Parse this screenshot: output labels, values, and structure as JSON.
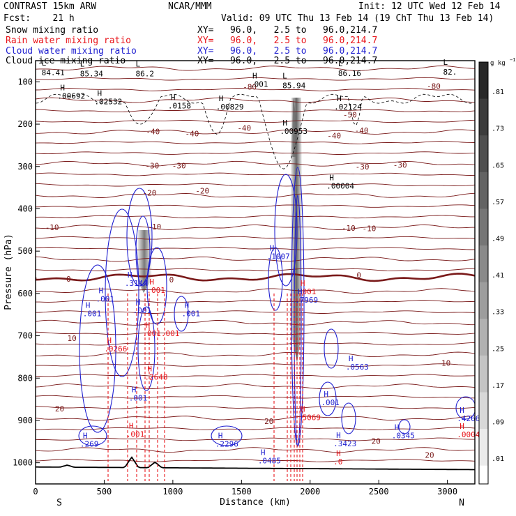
{
  "header": {
    "model": "CONTRAST 15km ARW",
    "center": "NCAR/MMM",
    "init": "Init: 12 UTC Wed 12 Feb 14",
    "fcst": "Fcst:    21 h",
    "valid": "Valid: 09 UTC Thu 13 Feb 14 (19 ChT Thu 13 Feb 14)",
    "fields": [
      {
        "name": "Snow mixing ratio",
        "xy": "XY=   96.0,   2.5 to   96.0,214.7",
        "color": "#000000"
      },
      {
        "name": "Rain water mixing ratio",
        "xy": "XY=   96.0,   2.5 to   96.0,214.7",
        "color": "#e8141a"
      },
      {
        "name": "Cloud water mixing ratio",
        "xy": "XY=   96.0,   2.5 to   96.0,214.7",
        "color": "#1f1fd0"
      },
      {
        "name": "Cloud ice mixing ratio",
        "xy": "XY=   96.0,   2.5 to   96.0,214.7",
        "color": "#000000"
      }
    ]
  },
  "chart_data": {
    "type": "contour",
    "xlabel": "Distance (km)",
    "ylabel": "Pressure (hPa)",
    "xlim": [
      0,
      3200
    ],
    "ylim": [
      1050,
      50
    ],
    "xticks": [
      0,
      500,
      1000,
      1500,
      2000,
      2500,
      3000
    ],
    "yticks": [
      100,
      200,
      300,
      400,
      500,
      600,
      700,
      800,
      900,
      1000
    ],
    "x_end_labels": {
      "left": "S",
      "right": "N"
    },
    "colorbar": {
      "unit": "g kg",
      "unit_exp": "−1",
      "labels": [
        ".01",
        ".09",
        ".17",
        ".25",
        ".33",
        ".41",
        ".49",
        ".57",
        ".65",
        ".73",
        ".81"
      ]
    },
    "temperature_levels": [
      -80,
      -50,
      -40,
      -30,
      -20,
      -10,
      0,
      10,
      20
    ],
    "temperature_labels": [
      {
        "t": "-80",
        "x": 1560,
        "p": 112
      },
      {
        "t": "-80",
        "x": 2900,
        "p": 110
      },
      {
        "t": "-50",
        "x": 2290,
        "p": 178
      },
      {
        "t": "-40",
        "x": 855,
        "p": 217
      },
      {
        "t": "-40",
        "x": 1140,
        "p": 222
      },
      {
        "t": "-40",
        "x": 1520,
        "p": 209
      },
      {
        "t": "-40",
        "x": 2175,
        "p": 227
      },
      {
        "t": "-40",
        "x": 2375,
        "p": 215
      },
      {
        "t": "-30",
        "x": 850,
        "p": 298
      },
      {
        "t": "-30",
        "x": 1045,
        "p": 298
      },
      {
        "t": "-30",
        "x": 2380,
        "p": 300
      },
      {
        "t": "-30",
        "x": 2655,
        "p": 296
      },
      {
        "t": "-20",
        "x": 830,
        "p": 362
      },
      {
        "t": "-20",
        "x": 1215,
        "p": 357
      },
      {
        "t": "-10",
        "x": 120,
        "p": 444
      },
      {
        "t": "-10",
        "x": 865,
        "p": 442
      },
      {
        "t": "-10",
        "x": 2280,
        "p": 445
      },
      {
        "t": "-10",
        "x": 2430,
        "p": 446
      },
      {
        "t": "0",
        "x": 240,
        "p": 566
      },
      {
        "t": "0",
        "x": 990,
        "p": 567
      },
      {
        "t": "0",
        "x": 2355,
        "p": 557
      },
      {
        "t": "10",
        "x": 265,
        "p": 706
      },
      {
        "t": "10",
        "x": 2990,
        "p": 764
      },
      {
        "t": "20",
        "x": 175,
        "p": 872
      },
      {
        "t": "20",
        "x": 1700,
        "p": 902
      },
      {
        "t": "20",
        "x": 2480,
        "p": 949
      },
      {
        "t": "20",
        "x": 2870,
        "p": 982
      }
    ],
    "min_labels": [
      {
        "x": 115,
        "p": 81,
        "v": "84.41",
        "color": "#000000"
      },
      {
        "x": 395,
        "p": 84,
        "v": "85.34",
        "color": "#000000"
      },
      {
        "x": 800,
        "p": 84,
        "v": "86.2",
        "color": "#000000"
      },
      {
        "x": 1870,
        "p": 112,
        "v": "85.94",
        "color": "#000000"
      },
      {
        "x": 2275,
        "p": 83,
        "v": "86.16",
        "color": "#000000"
      },
      {
        "x": 3040,
        "p": 80,
        "v": "82.",
        "color": "#000000"
      }
    ],
    "max_labels": [
      {
        "x": 200,
        "p": 140,
        "v": ".00692",
        "color": "#000000"
      },
      {
        "x": 470,
        "p": 153,
        "v": ".02532",
        "color": "#000000"
      },
      {
        "x": 1005,
        "p": 163,
        "v": ".0158",
        "color": "#000000"
      },
      {
        "x": 1355,
        "p": 165,
        "v": ".00829",
        "color": "#000000"
      },
      {
        "x": 1600,
        "p": 112,
        "v": ".001",
        "color": "#000000"
      },
      {
        "x": 1820,
        "p": 223,
        "v": ".00953",
        "color": "#000000"
      },
      {
        "x": 2215,
        "p": 165,
        "v": ".02124",
        "color": "#000000"
      },
      {
        "x": 2160,
        "p": 352,
        "v": ".00004",
        "color": "#000000"
      },
      {
        "x": 690,
        "p": 582,
        "v": ".3144",
        "color": "#1f1fd0"
      },
      {
        "x": 480,
        "p": 619,
        "v": ".001",
        "color": "#1f1fd0"
      },
      {
        "x": 385,
        "p": 654,
        "v": ".001",
        "color": "#1f1fd0"
      },
      {
        "x": 750,
        "p": 646,
        "v": ".001",
        "color": "#1f1fd0"
      },
      {
        "x": 1105,
        "p": 654,
        "v": ".001",
        "color": "#1f1fd0"
      },
      {
        "x": 1725,
        "p": 519,
        "v": ".1007",
        "color": "#1f1fd0"
      },
      {
        "x": 1930,
        "p": 622,
        "v": ".7969",
        "color": "#1f1fd0"
      },
      {
        "x": 2300,
        "p": 780,
        "v": ".0563",
        "color": "#1f1fd0"
      },
      {
        "x": 2120,
        "p": 864,
        "v": ".001",
        "color": "#1f1fd0"
      },
      {
        "x": 720,
        "p": 853,
        "v": ".001",
        "color": "#1f1fd0"
      },
      {
        "x": 365,
        "p": 962,
        "v": ".269",
        "color": "#1f1fd0"
      },
      {
        "x": 1350,
        "p": 962,
        "v": ".2296",
        "color": "#1f1fd0"
      },
      {
        "x": 1660,
        "p": 1001,
        "v": ".0485",
        "color": "#1f1fd0"
      },
      {
        "x": 2210,
        "p": 961,
        "v": ".3423",
        "color": "#1f1fd0"
      },
      {
        "x": 2635,
        "p": 942,
        "v": ".0345",
        "color": "#1f1fd0"
      },
      {
        "x": 3110,
        "p": 902,
        "v": ".4266",
        "color": "#1f1fd0"
      },
      {
        "x": 540,
        "p": 737,
        "v": ".0266",
        "color": "#e8141a"
      },
      {
        "x": 835,
        "p": 804,
        "v": ".2648",
        "color": "#e8141a"
      },
      {
        "x": 1950,
        "p": 899,
        "v": ".5069",
        "color": "#e8141a"
      },
      {
        "x": 3110,
        "p": 940,
        "v": ".0004",
        "color": "#e8141a"
      },
      {
        "x": 2210,
        "p": 1004,
        "v": ".0",
        "color": "#e8141a"
      },
      {
        "x": 700,
        "p": 939,
        "v": ".001",
        "color": "#e8141a"
      },
      {
        "x": 820,
        "p": 701,
        "v": ".001.001",
        "color": "#e8141a"
      },
      {
        "x": 850,
        "p": 599,
        "v": ".001",
        "color": "#e8141a"
      },
      {
        "x": 1950,
        "p": 602,
        "v": ".001",
        "color": "#e8141a"
      }
    ]
  }
}
